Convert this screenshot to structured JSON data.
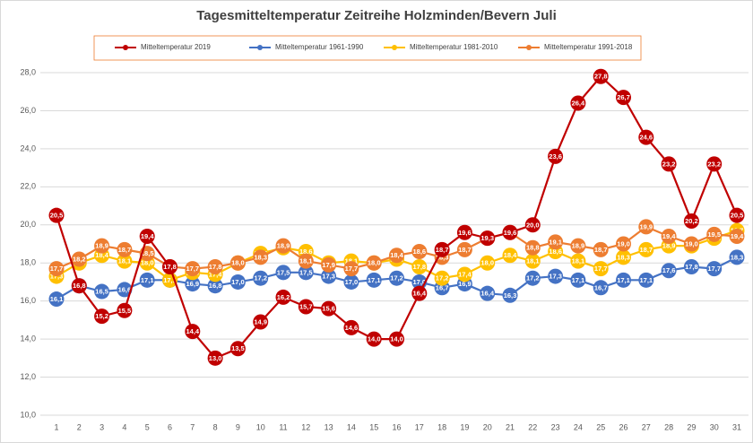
{
  "chart_data": {
    "type": "line",
    "title": "Tagesmitteltemperatur Zeitreihe Holzminden/Bevern Juli",
    "categories": [
      "1",
      "2",
      "3",
      "4",
      "5",
      "6",
      "7",
      "8",
      "9",
      "10",
      "11",
      "12",
      "13",
      "14",
      "15",
      "16",
      "17",
      "18",
      "19",
      "20",
      "21",
      "22",
      "23",
      "24",
      "25",
      "26",
      "27",
      "28",
      "29",
      "30",
      "31"
    ],
    "ylim": [
      10,
      28
    ],
    "yticks": [
      {
        "value": 10,
        "label": "10,0"
      },
      {
        "value": 12,
        "label": "12,0"
      },
      {
        "value": 14,
        "label": "14,0"
      },
      {
        "value": 16,
        "label": "16,0"
      },
      {
        "value": 18,
        "label": "18,0"
      },
      {
        "value": 20,
        "label": "20,0"
      },
      {
        "value": 22,
        "label": "22,0"
      },
      {
        "value": 24,
        "label": "24,0"
      },
      {
        "value": 26,
        "label": "26,0"
      },
      {
        "value": 28,
        "label": "28,0"
      }
    ],
    "grid": true,
    "series": [
      {
        "name": "Mitteltemperatur 2019",
        "color": "#c00000",
        "values": [
          20.5,
          16.8,
          15.2,
          15.5,
          19.4,
          17.8,
          14.4,
          13.0,
          13.5,
          14.9,
          16.2,
          15.7,
          15.6,
          14.6,
          14.0,
          14.0,
          16.4,
          18.7,
          19.6,
          19.3,
          19.6,
          20.0,
          23.6,
          26.4,
          27.8,
          26.7,
          24.6,
          23.2,
          20.2,
          23.2,
          20.5
        ],
        "value_labels": [
          "20,5",
          "16,8",
          "15,2",
          "15,5",
          "19,4",
          "17,8",
          "14,4",
          "13,0",
          "13,5",
          "14,9",
          "16,2",
          "15,7",
          "15,6",
          "14,6",
          "14,0",
          "14,0",
          "16,4",
          "18,7",
          "19,6",
          "19,3",
          "19,6",
          "20,0",
          "23,6",
          "26,4",
          "27,8",
          "26,7",
          "24,6",
          "23,2",
          "20,2",
          "23,2",
          "20,5"
        ]
      },
      {
        "name": "Mitteltemperatur 1961-1990",
        "color": "#4472c4",
        "values": [
          16.1,
          16.8,
          16.5,
          16.6,
          17.1,
          17.1,
          16.9,
          16.8,
          17.0,
          17.2,
          17.5,
          17.5,
          17.3,
          17.0,
          17.1,
          17.2,
          17.0,
          16.7,
          16.9,
          16.4,
          16.3,
          17.2,
          17.3,
          17.1,
          16.7,
          17.1,
          17.1,
          17.6,
          17.8,
          17.7,
          18.3
        ],
        "value_labels": [
          "16,1",
          "16,8",
          "16,5",
          "16,6",
          "17,1",
          "17,1",
          "16,9",
          "16,8",
          "17,0",
          "17,2",
          "17,5",
          "17,5",
          "17,3",
          "17,0",
          "17,1",
          "17,2",
          "17,0",
          "16,7",
          "16,9",
          "16,4",
          "16,3",
          "17,2",
          "17,3",
          "17,1",
          "16,7",
          "17,1",
          "17,1",
          "17,6",
          "17,8",
          "17,7",
          "18,3"
        ]
      },
      {
        "name": "Mitteltemperatur 1981-2010",
        "color": "#ffc000",
        "values": [
          17.3,
          18.0,
          18.4,
          18.1,
          18.0,
          17.1,
          17.5,
          17.4,
          18.0,
          18.5,
          18.8,
          18.6,
          18.0,
          18.1,
          18.0,
          18.2,
          17.8,
          17.2,
          17.4,
          18.0,
          18.4,
          18.1,
          18.6,
          18.1,
          17.7,
          18.3,
          18.7,
          18.9,
          18.9,
          19.3,
          19.7
        ],
        "value_labels": [
          "17,3",
          "18,0",
          "18,4",
          "18,1",
          "18,0",
          "17,1",
          "17,5",
          "17,4",
          "18,0",
          "18,5",
          "18,8",
          "18,6",
          "18,0",
          "18,1",
          "18,0",
          "18,2",
          "17,8",
          "17,2",
          "17,4",
          "18,0",
          "18,4",
          "18,1",
          "18,6",
          "18,1",
          "17,7",
          "18,3",
          "18,7",
          "18,9",
          "18,9",
          "19,3",
          "19,7"
        ]
      },
      {
        "name": "Mitteltemperatur 1991-2018",
        "color": "#ed7d31",
        "values": [
          17.7,
          18.2,
          18.9,
          18.7,
          18.5,
          17.8,
          17.7,
          17.8,
          18.0,
          18.3,
          18.9,
          18.1,
          17.9,
          17.7,
          18.0,
          18.4,
          18.6,
          18.3,
          18.7,
          19.3,
          19.6,
          18.8,
          19.1,
          18.9,
          18.7,
          19.0,
          19.9,
          19.4,
          19.0,
          19.5,
          19.4
        ],
        "value_labels": [
          "17,7",
          "18,2",
          "18,9",
          "18,7",
          "18,5",
          "17,8",
          "17,7",
          "17,8",
          "18,0",
          "18,3",
          "18,9",
          "18,1",
          "17,9",
          "17,7",
          "18,0",
          "18,4",
          "18,6",
          "18,3",
          "18,7",
          "19,3",
          "19,6",
          "18,8",
          "19,1",
          "18,9",
          "18,7",
          "19,0",
          "19,9",
          "19,4",
          "19,0",
          "19,5",
          "19,4"
        ]
      }
    ]
  }
}
